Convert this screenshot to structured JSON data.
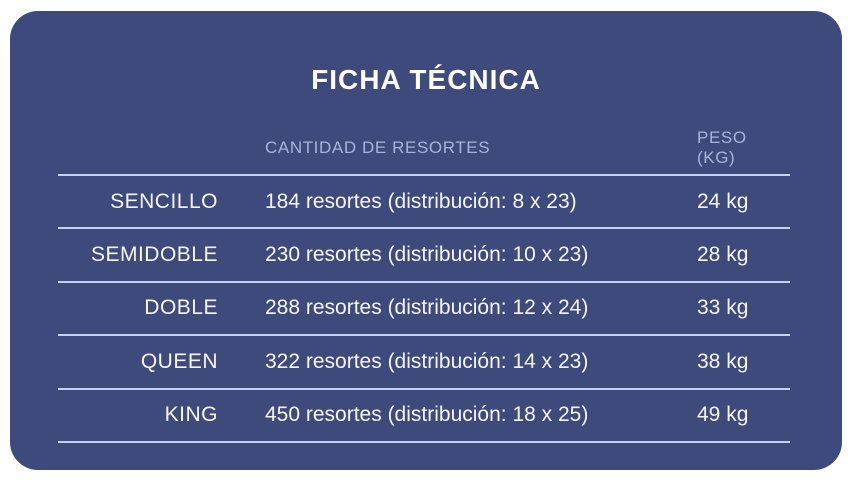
{
  "card": {
    "title": "FICHA TÉCNICA",
    "table": {
      "headers": {
        "label": "",
        "resortes": "CANTIDAD DE RESORTES",
        "peso": "PESO (KG)"
      },
      "rows": [
        {
          "label": "SENCILLO",
          "resortes": "184 resortes (distribución: 8 x 23)",
          "peso": "24 kg"
        },
        {
          "label": "SEMIDOBLE",
          "resortes": "230 resortes (distribución: 10 x 23)",
          "peso": "28 kg"
        },
        {
          "label": "DOBLE",
          "resortes": "288 resortes (distribución: 12 x 24)",
          "peso": "33 kg"
        },
        {
          "label": "QUEEN",
          "resortes": "322 resortes (distribución: 14 x 23)",
          "peso": "38 kg"
        },
        {
          "label": "KING",
          "resortes": "450 resortes (distribución: 18 x 25)",
          "peso": "49 kg"
        }
      ]
    },
    "colors": {
      "page_bg": "#ffffff",
      "card_bg": "#3e4a7b",
      "divider": "#c6d0f0",
      "header_text": "#a7b3dc",
      "body_text": "#f5f5f7",
      "title_text": "#fdfdfe"
    }
  }
}
